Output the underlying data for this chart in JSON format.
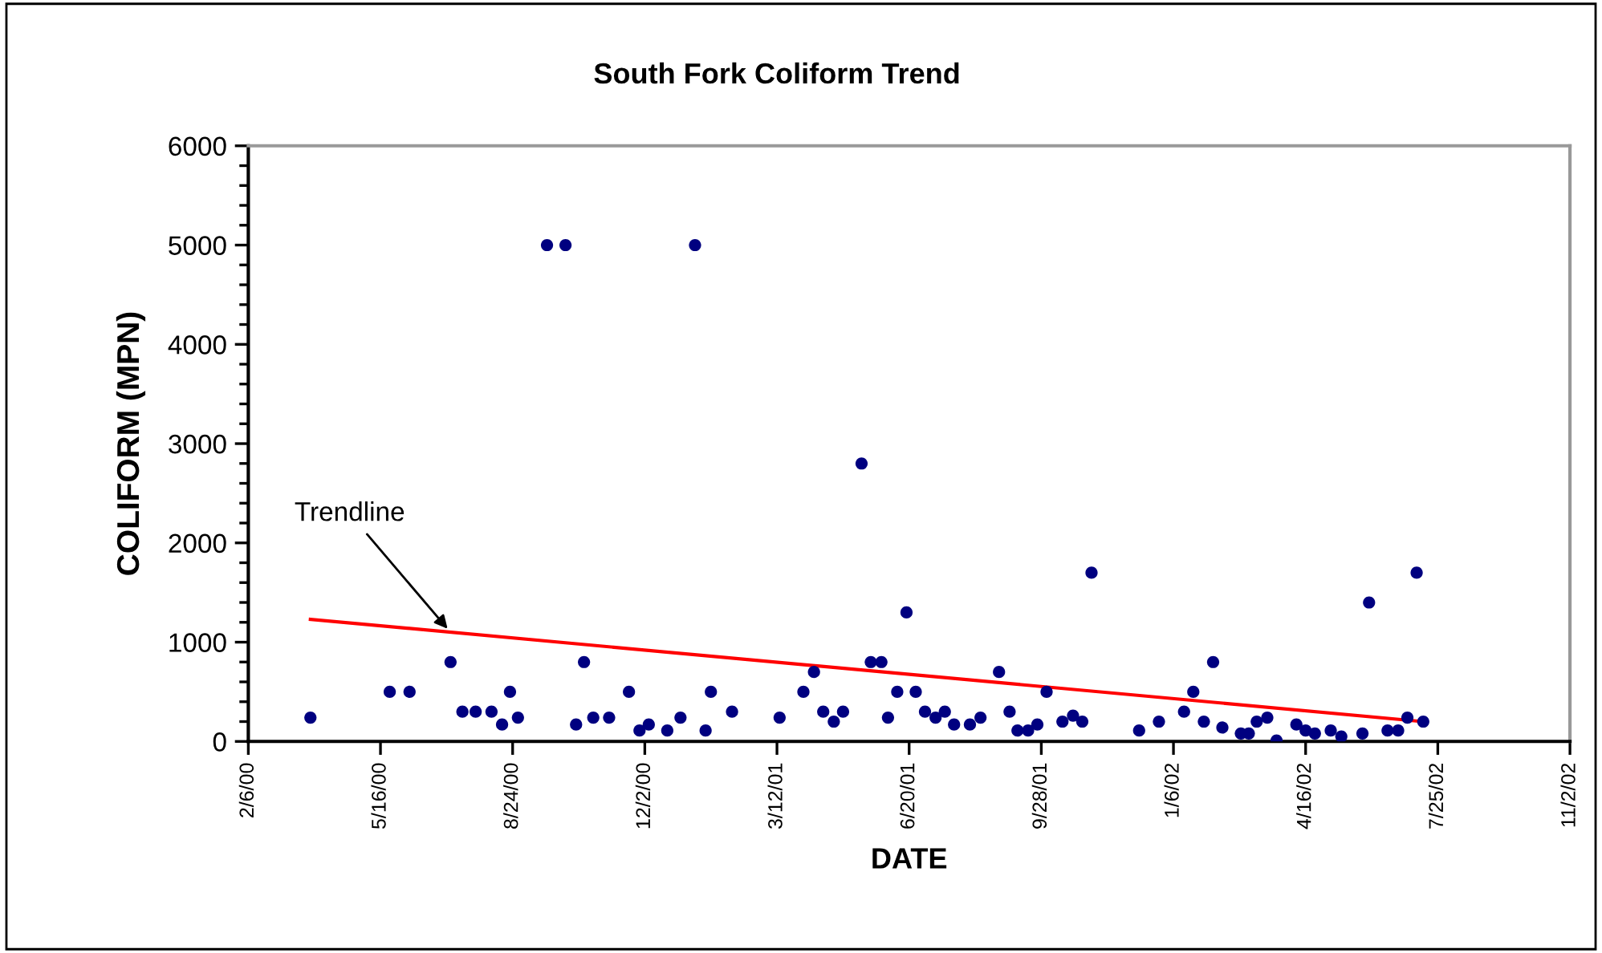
{
  "chart_data": {
    "type": "scatter",
    "title": "South Fork Coliform Trend",
    "xlabel": "DATE",
    "ylabel": "COLIFORM (MPN)",
    "xlim": [
      "2000-02-06",
      "2002-11-02"
    ],
    "xticks": [
      {
        "value": "2000-02-06",
        "label": "2/6/00"
      },
      {
        "value": "2000-05-16",
        "label": "5/16/00"
      },
      {
        "value": "2000-08-24",
        "label": "8/24/00"
      },
      {
        "value": "2000-12-02",
        "label": "12/2/00"
      },
      {
        "value": "2001-03-12",
        "label": "3/12/01"
      },
      {
        "value": "2001-06-20",
        "label": "6/20/01"
      },
      {
        "value": "2001-09-28",
        "label": "9/28/01"
      },
      {
        "value": "2002-01-06",
        "label": "1/6/02"
      },
      {
        "value": "2002-04-16",
        "label": "4/16/02"
      },
      {
        "value": "2002-07-25",
        "label": "7/25/02"
      },
      {
        "value": "2002-11-02",
        "label": "11/2/02"
      }
    ],
    "ylim": [
      0,
      6000
    ],
    "yticks": [
      0,
      1000,
      2000,
      3000,
      4000,
      5000,
      6000
    ],
    "grid": false,
    "legend": false,
    "series": [
      {
        "marker": "circle",
        "color": "#000080",
        "x": [
          "2000-03-24",
          "2000-05-23",
          "2000-06-07",
          "2000-07-08",
          "2000-07-17",
          "2000-07-27",
          "2000-08-08",
          "2000-08-16",
          "2000-08-22",
          "2000-08-28",
          "2000-09-19",
          "2000-10-03",
          "2000-10-11",
          "2000-10-17",
          "2000-10-24",
          "2000-11-05",
          "2000-11-20",
          "2000-11-28",
          "2000-12-05",
          "2000-12-19",
          "2000-12-29",
          "2001-01-09",
          "2001-01-17",
          "2001-01-21",
          "2001-02-06",
          "2001-03-14",
          "2001-04-01",
          "2001-04-09",
          "2001-04-16",
          "2001-04-24",
          "2001-05-01",
          "2001-05-15",
          "2001-05-22",
          "2001-05-30",
          "2001-06-04",
          "2001-06-11",
          "2001-06-18",
          "2001-06-25",
          "2001-07-02",
          "2001-07-10",
          "2001-07-17",
          "2001-07-24",
          "2001-08-05",
          "2001-08-13",
          "2001-08-27",
          "2001-09-04",
          "2001-09-10",
          "2001-09-18",
          "2001-09-25",
          "2001-10-02",
          "2001-10-14",
          "2001-10-22",
          "2001-10-29",
          "2001-11-05",
          "2001-12-11",
          "2001-12-26",
          "2002-01-14",
          "2002-01-21",
          "2002-01-29",
          "2002-02-05",
          "2002-02-12",
          "2002-02-26",
          "2002-03-04",
          "2002-03-10",
          "2002-03-18",
          "2002-03-25",
          "2002-04-09",
          "2002-04-16",
          "2002-04-23",
          "2002-05-05",
          "2002-05-13",
          "2002-05-29",
          "2002-06-03",
          "2002-06-17",
          "2002-06-25",
          "2002-07-02",
          "2002-07-09",
          "2002-07-14"
        ],
        "values": [
          240,
          500,
          500,
          800,
          300,
          300,
          300,
          170,
          500,
          240,
          5000,
          5000,
          170,
          800,
          240,
          240,
          500,
          110,
          170,
          110,
          240,
          5000,
          110,
          500,
          300,
          240,
          500,
          700,
          300,
          200,
          300,
          2800,
          800,
          800,
          240,
          500,
          1300,
          500,
          300,
          240,
          300,
          170,
          170,
          240,
          700,
          300,
          110,
          110,
          170,
          500,
          200,
          260,
          200,
          1700,
          110,
          200,
          300,
          500,
          200,
          800,
          140,
          80,
          80,
          200,
          240,
          10,
          170,
          110,
          80,
          110,
          50,
          80,
          1400,
          110,
          110,
          240,
          1700,
          200
        ]
      },
      {
        "type": "line",
        "color": "#ff0000",
        "x": [
          "2000-03-24",
          "2002-07-14"
        ],
        "values": [
          1230,
          200
        ]
      }
    ],
    "annotations": [
      {
        "text": "Trendline",
        "x": "2000-07-08",
        "y": 1100
      }
    ]
  }
}
